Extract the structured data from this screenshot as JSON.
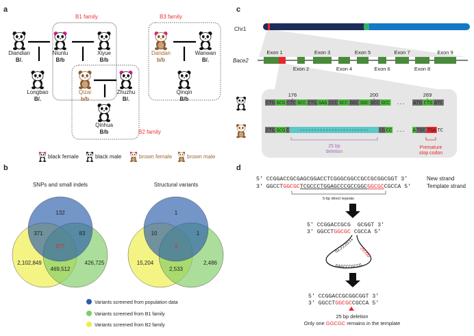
{
  "panel_a": {
    "label": "a",
    "families": [
      {
        "label": "B1 family"
      },
      {
        "label": "B2 family"
      },
      {
        "label": "B3 family"
      }
    ],
    "pandas": [
      {
        "name": "Diandian",
        "genotype": "B/.",
        "type": "black-male"
      },
      {
        "name": "Niunlu",
        "genotype": "B/b",
        "type": "black-female"
      },
      {
        "name": "Xiyue",
        "genotype": "B/b",
        "type": "black-male"
      },
      {
        "name": "Longbao",
        "genotype": "B/.",
        "type": "black-male"
      },
      {
        "name": "Qizai",
        "genotype": "b/b",
        "type": "brown-male"
      },
      {
        "name": "Zhuzhu",
        "genotype": "B/.",
        "type": "black-female"
      },
      {
        "name": "Qinhua",
        "genotype": "B/b",
        "type": "black-male"
      },
      {
        "name": "Dandan",
        "genotype": "b/b",
        "type": "brown-female"
      },
      {
        "name": "Wanwan",
        "genotype": "B/.",
        "type": "black-male"
      },
      {
        "name": "Qinqin",
        "genotype": "B/b",
        "type": "black-male"
      }
    ],
    "legend": [
      {
        "label": "black female",
        "type": "black-female"
      },
      {
        "label": "black male",
        "type": "black-male"
      },
      {
        "label": "brown female",
        "type": "brown-female"
      },
      {
        "label": "brown male",
        "type": "brown-male"
      }
    ]
  },
  "panel_b": {
    "label": "b",
    "colors": {
      "population": "#2a5caa",
      "b1": "#6cc04a",
      "b2": "#eeee44",
      "highlight": "#e8262b"
    },
    "venns": [
      {
        "title": "SNPs and small indels",
        "pop_only": "132",
        "pop_b2": "371",
        "pop_b1": "83",
        "all": "977",
        "b2_only": "2,102,849",
        "b1_b2": "469,512",
        "b1_only": "426,725"
      },
      {
        "title": "Structural variants",
        "pop_only": "1",
        "pop_b2": "10",
        "pop_b1": "1",
        "all": "4",
        "b2_only": "15,204",
        "b1_b2": "2,533",
        "b1_only": "2,486"
      }
    ],
    "legend": [
      {
        "label": "Variants screened from population data",
        "color": "#2a5caa"
      },
      {
        "label": "Variants screened from B1 family",
        "color": "#7fcc66"
      },
      {
        "label": "Variants screened from B2 family",
        "color": "#eeee44"
      }
    ]
  },
  "panel_c": {
    "label": "c",
    "chr_label": "Chr1",
    "gene_label": "Bace2",
    "exons": [
      "Exon 1",
      "Exon 2",
      "Exon 3",
      "Exon 4",
      "Exon 5",
      "Exon 6",
      "Exon 7",
      "Exon 8",
      "Exon 9"
    ],
    "positions": [
      "176",
      "200",
      "269"
    ],
    "wildtype": {
      "codons": [
        [
          "CTG",
          "g"
        ],
        [
          "GCG",
          "G"
        ],
        [
          "CTC",
          "g"
        ],
        [
          "GCC",
          "G"
        ],
        [
          "CTG",
          "g"
        ],
        [
          "GAG",
          "G"
        ],
        [
          "CCC",
          "g"
        ],
        [
          "GCC",
          "G"
        ],
        [
          "GGC",
          "g"
        ],
        [
          "GGC",
          "G"
        ],
        [
          "GCC",
          "g"
        ],
        [
          "GCC",
          "G"
        ]
      ],
      "tail": [
        [
          "ATG",
          "g"
        ],
        [
          "CTG",
          "G"
        ],
        [
          "ATC",
          "g"
        ]
      ]
    },
    "mutant": {
      "head": [
        [
          "CTG",
          "g"
        ],
        [
          "GCG",
          "G"
        ],
        [
          "C",
          "g"
        ]
      ],
      "gap": "------------------------",
      "after": [
        [
          "CG",
          "g"
        ],
        [
          "CC",
          "G"
        ]
      ],
      "tail": [
        [
          "A",
          "G"
        ],
        [
          "TGC",
          "g"
        ],
        [
          "TGA",
          "R"
        ],
        [
          "TC",
          "n"
        ]
      ]
    },
    "ellipsis": "...",
    "deletion_label": [
      "25 bp",
      "deletion"
    ],
    "stop_label": [
      "Premature",
      "stop codon"
    ]
  },
  "panel_d": {
    "label": "d",
    "new_strand": {
      "p5": "5'",
      "seq": "CCGGACCGCGAGCGGACCTCGGGCGGCCGCCGCGGCGGT",
      "p3": "3'",
      "name": "New strand"
    },
    "template_strand": {
      "p3": "3'",
      "a": "GGCCT",
      "b": "GGCGC",
      "c": "TCGCCCTGGAGCCCGCCGGC",
      "d": "GGCGC",
      "e": "CGCCA",
      "p5": "5'",
      "name": "Template strand"
    },
    "repeats_label": "5-bp direct repeats",
    "mid_top": {
      "p5": "5'",
      "seq": "CCGGACCGCG  GCGGT",
      "p3": "3'"
    },
    "mid_bottom": {
      "p3": "3'",
      "a": "GGCCT",
      "b": "GGCGC",
      "c": " CGCCA",
      "p5": "5'"
    },
    "loop_left": "TCGCCCTG",
    "loop_bottom": "GAGCCCGCCG",
    "loop_right": "GGCGC",
    "final_top": {
      "p5": "5'",
      "seq": "CCGGACCGCGGCGGT",
      "p3": "3'"
    },
    "final_bottom": {
      "p3": "3'",
      "a": "GGCCT",
      "b": "GGCGC",
      "c": "CGCCA",
      "p5": "5'"
    },
    "result_line1": "25 bp deletion",
    "result_line2": {
      "a": "Only one ",
      "b": "GGCGC",
      "c": " remains in the template"
    }
  }
}
